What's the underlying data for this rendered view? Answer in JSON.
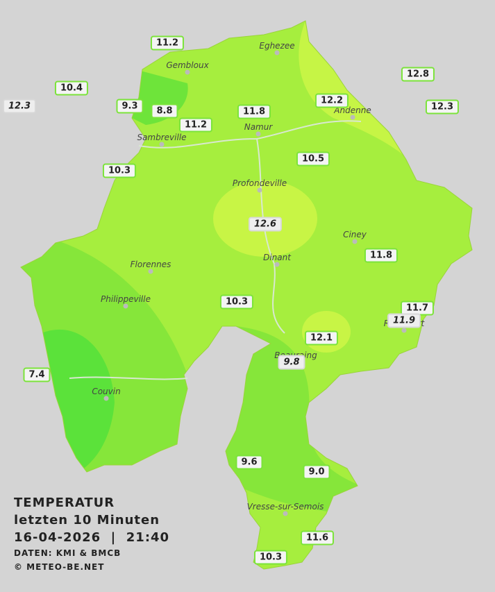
{
  "legend": {
    "heading": "TEMPERATUR",
    "subtitle": "letzten 10 Minuten",
    "datetime": "16-04-2026  |  21:40",
    "source": "DATEN: KMI & BMCB",
    "copyright": "© METEO-BE.NET"
  },
  "towns": [
    "Eghezee",
    "Gembloux",
    "Andenne",
    "Namur",
    "Sambreville",
    "Profondeville",
    "Ciney",
    "Florennes",
    "Dinant",
    "Philippeville",
    "Rochefort",
    "Beauraing",
    "Couvin",
    "Vresse-sur-Semois"
  ],
  "stations": [
    "11.2",
    "10.4",
    "12.3",
    "9.3",
    "8.8",
    "11.2",
    "11.8",
    "12.2",
    "12.8",
    "12.3",
    "10.3",
    "10.5",
    "12.6",
    "11.8",
    "10.3",
    "11.7",
    "11.9",
    "12.1",
    "9.8",
    "7.4",
    "9.6",
    "9.0",
    "11.6",
    "10.3"
  ]
}
